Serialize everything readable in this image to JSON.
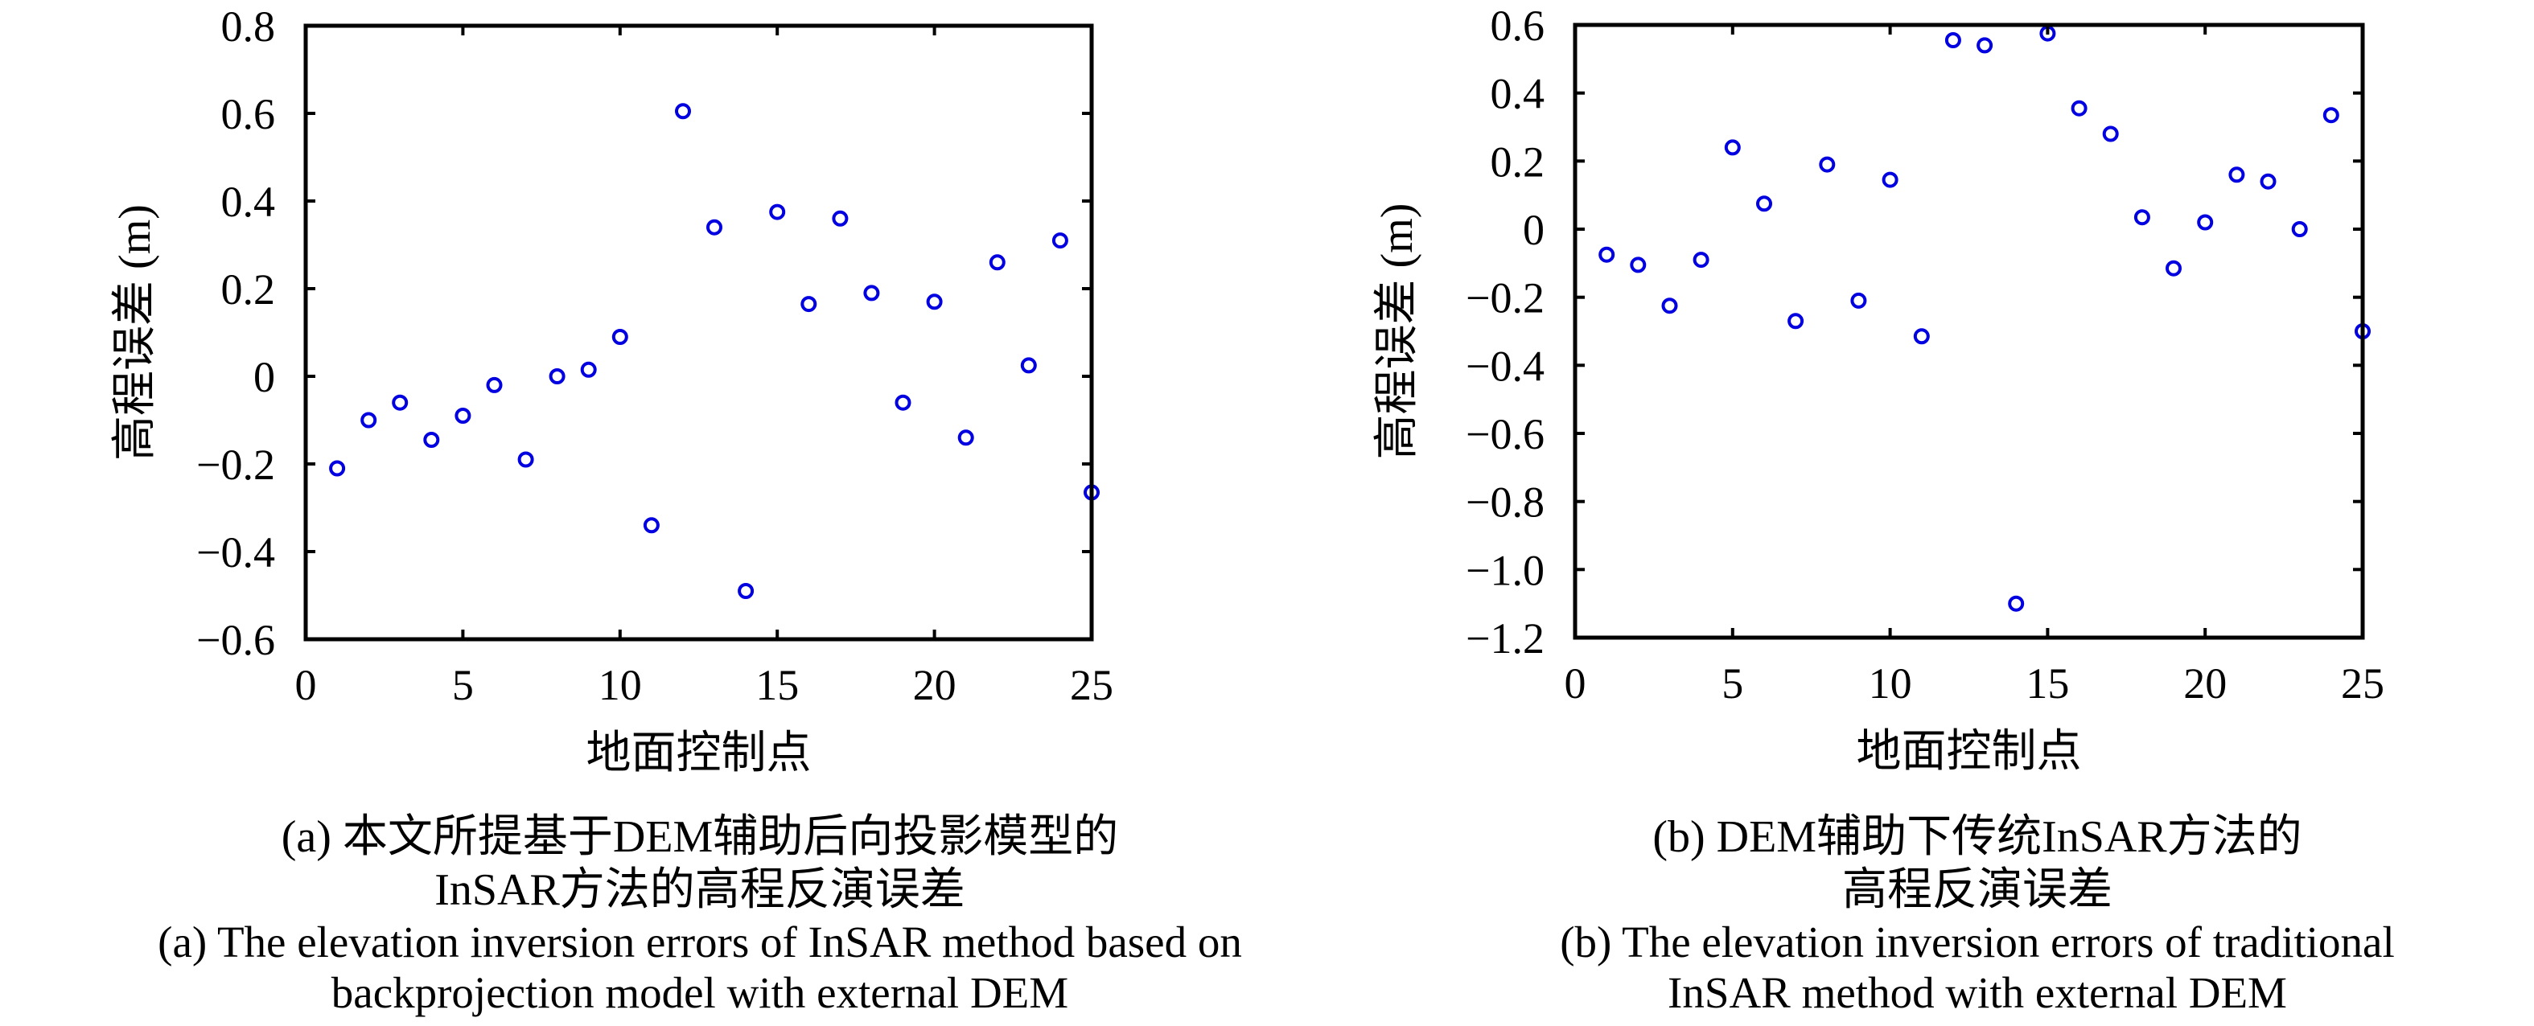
{
  "figure": {
    "marker_color": "#0000e0",
    "axis_color": "#000000",
    "background_color": "#ffffff"
  },
  "chart_data": [
    {
      "type": "scatter",
      "panel": "a",
      "title": "",
      "xlabel": "地面控制点",
      "ylabel": "高程误差 (m)",
      "xlim": [
        0,
        25
      ],
      "ylim": [
        -0.6,
        0.8
      ],
      "grid": false,
      "legend": "none",
      "xticks": [
        0,
        5,
        10,
        15,
        20,
        25
      ],
      "xtick_labels": [
        "0",
        "5",
        "10",
        "15",
        "20",
        "25"
      ],
      "ytick_values": [
        0.8,
        0.6,
        0.4,
        0.2,
        0,
        -0.2,
        -0.4,
        -0.6
      ],
      "ytick_labels": [
        "0.8",
        "0.6",
        "0.4",
        "0.2",
        "0",
        "−0.2",
        "−0.4",
        "−0.6"
      ],
      "x": [
        1,
        2,
        3,
        4,
        5,
        6,
        7,
        8,
        9,
        10,
        11,
        12,
        13,
        14,
        15,
        16,
        17,
        18,
        19,
        20,
        21,
        22,
        23,
        24,
        25
      ],
      "y": [
        -0.21,
        -0.1,
        -0.06,
        -0.145,
        -0.09,
        -0.02,
        -0.19,
        0.0,
        0.015,
        0.09,
        -0.34,
        0.605,
        0.34,
        -0.49,
        0.375,
        0.165,
        0.36,
        0.19,
        -0.06,
        0.17,
        -0.14,
        0.26,
        0.025,
        0.31,
        -0.265
      ],
      "caption_cn_1": "(a) 本文所提基于DEM辅助后向投影模型的",
      "caption_cn_2": "InSAR方法的高程反演误差",
      "caption_en_1": "(a) The elevation inversion errors of InSAR method based on",
      "caption_en_2": "backprojection model with external DEM"
    },
    {
      "type": "scatter",
      "panel": "b",
      "title": "",
      "xlabel": "地面控制点",
      "ylabel": "高程误差 (m)",
      "xlim": [
        0,
        25
      ],
      "ylim": [
        -1.2,
        0.6
      ],
      "grid": false,
      "legend": "none",
      "xticks": [
        0,
        5,
        10,
        15,
        20,
        25
      ],
      "xtick_labels": [
        "0",
        "5",
        "10",
        "15",
        "20",
        "25"
      ],
      "ytick_values": [
        0.6,
        0.4,
        0.2,
        0,
        -0.2,
        -0.4,
        -0.6,
        -0.8,
        -1.0,
        -1.2
      ],
      "ytick_labels": [
        "0.6",
        "0.4",
        "0.2",
        "0",
        "−0.2",
        "−0.4",
        "−0.6",
        "−0.8",
        "−1.0",
        "−1.2"
      ],
      "x": [
        1,
        2,
        3,
        4,
        5,
        6,
        7,
        8,
        9,
        10,
        11,
        12,
        13,
        14,
        15,
        16,
        17,
        18,
        19,
        20,
        21,
        22,
        23,
        24,
        25
      ],
      "y": [
        -0.075,
        -0.105,
        -0.225,
        -0.09,
        0.24,
        0.075,
        -0.27,
        0.19,
        -0.21,
        0.145,
        -0.315,
        0.555,
        0.54,
        -1.1,
        0.575,
        0.355,
        0.28,
        0.035,
        -0.115,
        0.02,
        0.16,
        0.14,
        0.0,
        0.335,
        -0.3
      ],
      "caption_cn_1": "(b) DEM辅助下传统InSAR方法的",
      "caption_cn_2": "高程反演误差",
      "caption_en_1": "(b) The elevation inversion errors of traditional",
      "caption_en_2": "InSAR method with external DEM"
    }
  ]
}
